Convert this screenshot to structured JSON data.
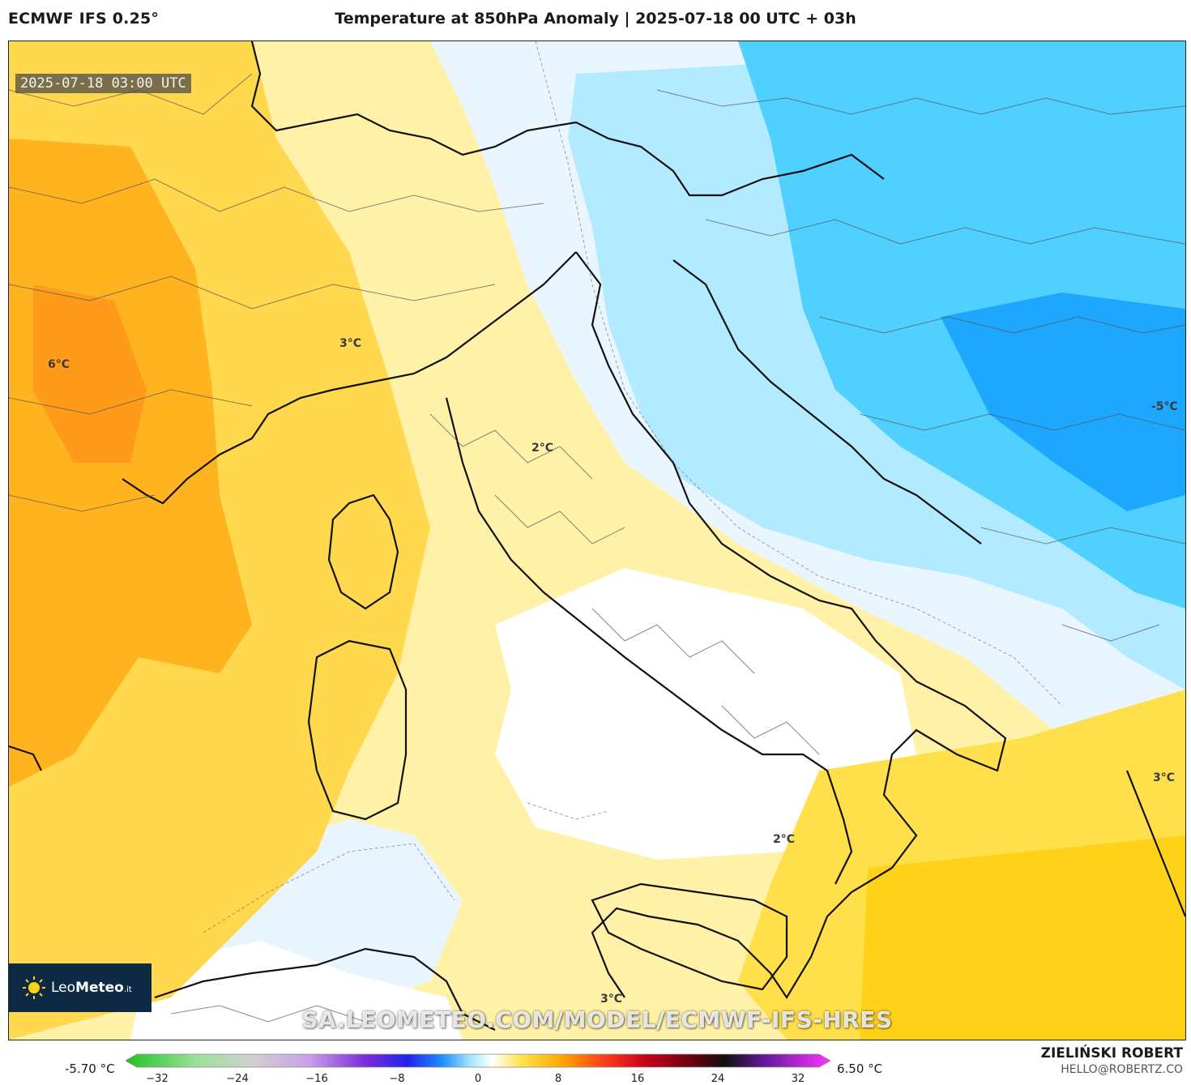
{
  "header": {
    "model": "ECMWF IFS 0.25°",
    "title": "Temperature at 850hPa Anomaly | 2025-07-18 00 UTC + 03h"
  },
  "map": {
    "valid_time": "2025-07-18 03:00 UTC",
    "contour_labels": [
      "6°C",
      "3°C",
      "2°C",
      "-5°C",
      "3°C",
      "2°C",
      "3°C"
    ],
    "logo": {
      "brand_leo": "Leo",
      "brand_meteo": "Meteo",
      "suffix": ".it"
    },
    "watermark": "SA.LEOMETEO.COM/MODEL/ECMWF-IFS-HRES",
    "colors": {
      "warm_light": "#fff2a8",
      "warm_mid": "#ffd700",
      "warm_orange": "#ffa500",
      "warm_deep": "#ff7f00",
      "cool_light": "#e6f4ff",
      "cool_mid": "#a8e6ff",
      "cool_deep": "#00bfff",
      "cool_deeper": "#1e90ff",
      "land_border": "#000000"
    }
  },
  "colorbar": {
    "min_label": "-5.70 °C",
    "max_label": "6.50 °C",
    "ticks": [
      "−32",
      "−24",
      "−16",
      "−8",
      "0",
      "8",
      "16",
      "24",
      "32"
    ]
  },
  "author": {
    "name": "ZIELIŃSKI ROBERT",
    "email": "HELLO@ROBERTZ.CO"
  }
}
